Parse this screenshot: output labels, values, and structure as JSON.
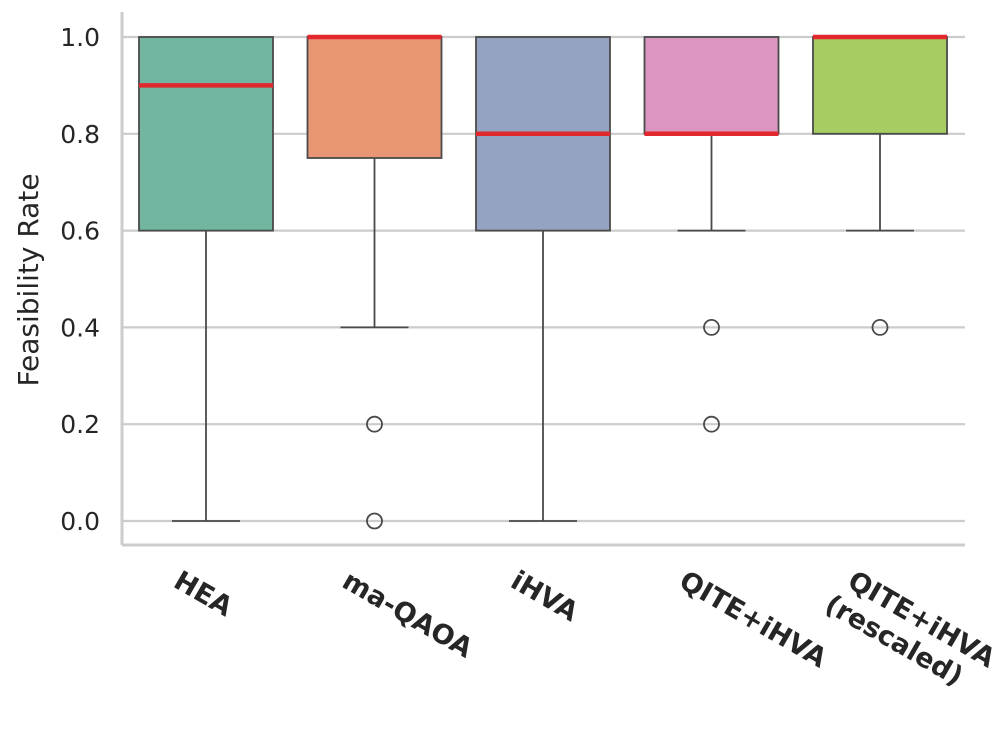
{
  "chart_data": {
    "type": "box",
    "ylabel": "Feasibility Rate",
    "xlabel": "",
    "ylim": [
      -0.05,
      1.05
    ],
    "yticks": [
      "0.0",
      "0.2",
      "0.4",
      "0.6",
      "0.8",
      "1.0"
    ],
    "grid": "horizontal",
    "categories": [
      {
        "label": [
          "HEA"
        ],
        "min": 0.0,
        "q1": 0.6,
        "median": 0.9,
        "q3": 1.0,
        "max": 1.0,
        "outliers": [],
        "color": "#72b6a1"
      },
      {
        "label": [
          "ma-QAOA"
        ],
        "min": 0.4,
        "q1": 0.75,
        "median": 1.0,
        "q3": 1.0,
        "max": 1.0,
        "outliers": [
          0.2,
          0.0
        ],
        "color": "#e99675"
      },
      {
        "label": [
          "iHVA"
        ],
        "min": 0.0,
        "q1": 0.6,
        "median": 0.8,
        "q3": 1.0,
        "max": 1.0,
        "outliers": [],
        "color": "#95a3c3"
      },
      {
        "label": [
          "QITE+iHVA"
        ],
        "min": 0.6,
        "q1": 0.8,
        "median": 0.8,
        "q3": 1.0,
        "max": 1.0,
        "outliers": [
          0.4,
          0.2
        ],
        "color": "#db96c0"
      },
      {
        "label": [
          "QITE+iHVA",
          "(rescaled)"
        ],
        "min": 0.6,
        "q1": 0.8,
        "median": 1.0,
        "q3": 1.0,
        "max": 1.0,
        "outliers": [
          0.4
        ],
        "color": "#a6cc62"
      }
    ],
    "colors": {
      "median": "#e0282e",
      "box_edge": "#4a4a4a",
      "grid": "#cccccc",
      "spine": "#cccccc"
    }
  }
}
